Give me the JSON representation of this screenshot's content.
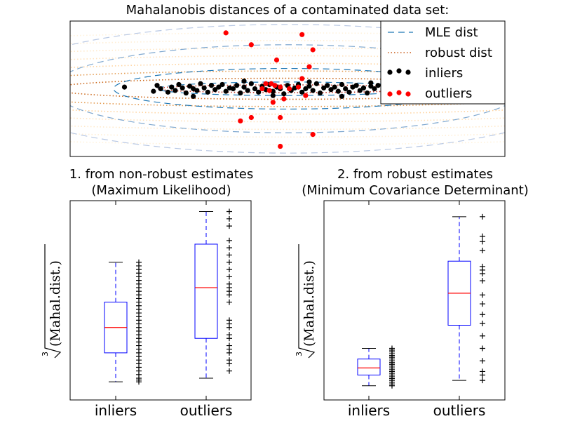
{
  "chart_data": [
    {
      "type": "scatter",
      "title": "Mahalanobis distances of a contaminated data set:",
      "xlabel": "",
      "ylabel": "",
      "grid": false,
      "legend_position": "top-right",
      "legend": [
        "MLE dist",
        "robust dist",
        "inliers",
        "outliers"
      ],
      "colors": {
        "mle": "#1f77b4",
        "robust": "#c85a18",
        "inliers": "#000000",
        "outliers": "#ff0000",
        "axis": "#000000"
      },
      "xlim": [
        -6,
        6
      ],
      "ylim": [
        -4,
        4
      ],
      "series": [
        {
          "name": "inliers",
          "x": [
            -4.5,
            -3.7,
            -3.6,
            -3.5,
            -3.3,
            -3.2,
            -3.1,
            -3.0,
            -2.9,
            -2.8,
            -2.7,
            -2.6,
            -2.5,
            -2.4,
            -2.3,
            -2.2,
            -2.1,
            -2.0,
            -1.9,
            -1.8,
            -1.7,
            -1.6,
            -1.5,
            -1.4,
            -1.3,
            -1.2,
            -1.1,
            -1.0,
            -0.9,
            -0.8,
            -0.7,
            -0.6,
            -0.5,
            -0.4,
            -0.3,
            -0.2,
            -0.1,
            0.0,
            0.1,
            0.2,
            0.3,
            0.4,
            0.5,
            0.6,
            0.7,
            0.8,
            0.9,
            1.0,
            1.1,
            1.2,
            1.3,
            1.4,
            1.5,
            1.6,
            1.7,
            1.8,
            1.9,
            2.0,
            2.1,
            2.2,
            2.3,
            2.4,
            2.5,
            2.7,
            2.9,
            3.1,
            3.3,
            3.6,
            -2.6,
            -1.2,
            -0.4,
            0.6,
            1.5,
            2.3
          ],
          "y": [
            0.1,
            -0.15,
            0.2,
            0.0,
            -0.2,
            0.1,
            -0.1,
            0.25,
            0.05,
            -0.25,
            0.15,
            0.0,
            -0.1,
            0.3,
            0.05,
            -0.2,
            0.2,
            -0.05,
            0.1,
            0.25,
            -0.15,
            0.05,
            0.0,
            0.2,
            -0.25,
            0.1,
            -0.1,
            0.3,
            0.0,
            -0.2,
            0.15,
            -0.05,
            0.25,
            -0.15,
            0.1,
            0.0,
            -0.3,
            0.2,
            -0.1,
            0.05,
            0.25,
            -0.2,
            0.0,
            0.15,
            -0.1,
            0.3,
            -0.25,
            0.05,
            0.2,
            -0.05,
            0.1,
            -0.15,
            0.25,
            0.0,
            -0.2,
            0.1,
            0.2,
            -0.1,
            0.05,
            -0.25,
            0.15,
            0.0,
            0.2,
            -0.1,
            0.05,
            0.0,
            -0.15,
            -0.05,
            -0.45,
            0.45,
            -0.4,
            0.4,
            -0.45,
            0.35
          ]
        },
        {
          "name": "outliers",
          "x": [
            -1.7,
            0.4,
            -1.0,
            0.7,
            -0.3,
            0.6,
            0.4,
            0.3,
            -0.7,
            -0.6,
            -0.5,
            -0.45,
            -0.35,
            -0.2,
            0.05,
            0.5,
            -0.1,
            -0.4,
            -1.0,
            -1.3,
            -0.2,
            0.7,
            -0.2
          ],
          "y": [
            3.3,
            3.2,
            2.6,
            2.3,
            1.7,
            1.3,
            0.6,
            0.1,
            0.0,
            0.3,
            -0.1,
            0.3,
            0.2,
            0.1,
            0.0,
            -0.4,
            -0.6,
            -0.8,
            -1.7,
            -1.9,
            -1.7,
            -2.7,
            -3.4
          ]
        }
      ],
      "contours": {
        "mle": {
          "center": [
            0,
            0
          ],
          "semi_axes": [
            [
              3.6,
              0.4
            ],
            [
              4.8,
              1.2
            ],
            [
              6.5,
              2.6
            ],
            [
              8.2,
              3.8
            ]
          ]
        },
        "robust": {
          "center": [
            0,
            0
          ],
          "semi_axes": [
            [
              3.6,
              0.23
            ],
            [
              6.5,
              0.62
            ],
            [
              9.0,
              1.05
            ],
            [
              11.0,
              1.5
            ],
            [
              13.0,
              1.95
            ],
            [
              15.0,
              2.4
            ],
            [
              17.0,
              2.85
            ],
            [
              19.0,
              3.3
            ]
          ]
        }
      }
    },
    {
      "type": "boxplot",
      "title": "1. from non-robust estimates\n(Maximum Likelihood)",
      "title_lines": [
        "1. from non-robust estimates",
        "(Maximum Likelihood)"
      ],
      "xlabel": "",
      "ylabel": "∛(Mahal.dist.)",
      "ylabel_index": "3",
      "ylabel_text": "(Mahal.dist.)",
      "categories": [
        "inliers",
        "outliers"
      ],
      "ylim": [
        0.5,
        6.0
      ],
      "boxes": [
        {
          "category": "inliers",
          "whislo": 1.0,
          "q1": 1.8,
          "median": 2.5,
          "q3": 3.2,
          "whishi": 4.3
        },
        {
          "category": "outliers",
          "whislo": 1.1,
          "q1": 2.2,
          "median": 3.6,
          "q3": 4.8,
          "whishi": 5.7
        }
      ],
      "points": {
        "inliers": [
          1.0,
          1.05,
          1.1,
          1.2,
          1.3,
          1.4,
          1.5,
          1.6,
          1.7,
          1.8,
          1.9,
          2.0,
          2.1,
          2.2,
          2.3,
          2.4,
          2.5,
          2.6,
          2.7,
          2.8,
          2.9,
          3.0,
          3.1,
          3.2,
          3.3,
          3.4,
          3.5,
          3.6,
          3.7,
          3.8,
          3.9,
          4.0,
          4.1,
          4.2,
          4.3
        ],
        "outliers": [
          1.3,
          1.5,
          1.6,
          1.8,
          1.9,
          2.0,
          2.2,
          2.3,
          2.5,
          2.6,
          2.7,
          3.2,
          3.4,
          3.5,
          3.6,
          3.7,
          3.9,
          4.1,
          4.3,
          4.5,
          4.7,
          4.9,
          5.3,
          5.5,
          5.7
        ]
      }
    },
    {
      "type": "boxplot",
      "title": "2. from robust estimates\n(Minimum Covariance Determinant)",
      "title_lines": [
        "2. from robust estimates",
        "(Minimum Covariance Determinant)"
      ],
      "xlabel": "",
      "ylabel": "∛(Mahal.dist.)",
      "ylabel_index": "3",
      "ylabel_text": "(Mahal.dist.)",
      "categories": [
        "inliers",
        "outliers"
      ],
      "ylim": [
        0.6,
        11.8
      ],
      "boxes": [
        {
          "category": "inliers",
          "whislo": 1.4,
          "q1": 2.0,
          "median": 2.4,
          "q3": 2.9,
          "whishi": 3.5
        },
        {
          "category": "outliers",
          "whislo": 1.7,
          "q1": 4.8,
          "median": 6.6,
          "q3": 8.4,
          "whishi": 10.9
        }
      ],
      "points": {
        "inliers": [
          1.4,
          1.5,
          1.6,
          1.7,
          1.8,
          1.9,
          2.0,
          2.1,
          2.2,
          2.3,
          2.4,
          2.5,
          2.6,
          2.7,
          2.8,
          2.9,
          3.0,
          3.1,
          3.2,
          3.3,
          3.4,
          3.5
        ],
        "outliers": [
          1.7,
          2.0,
          2.2,
          2.8,
          3.5,
          4.2,
          4.9,
          5.4,
          6.0,
          6.5,
          7.3,
          7.7,
          7.9,
          8.1,
          9.0,
          9.5,
          9.8,
          10.9
        ]
      }
    }
  ]
}
